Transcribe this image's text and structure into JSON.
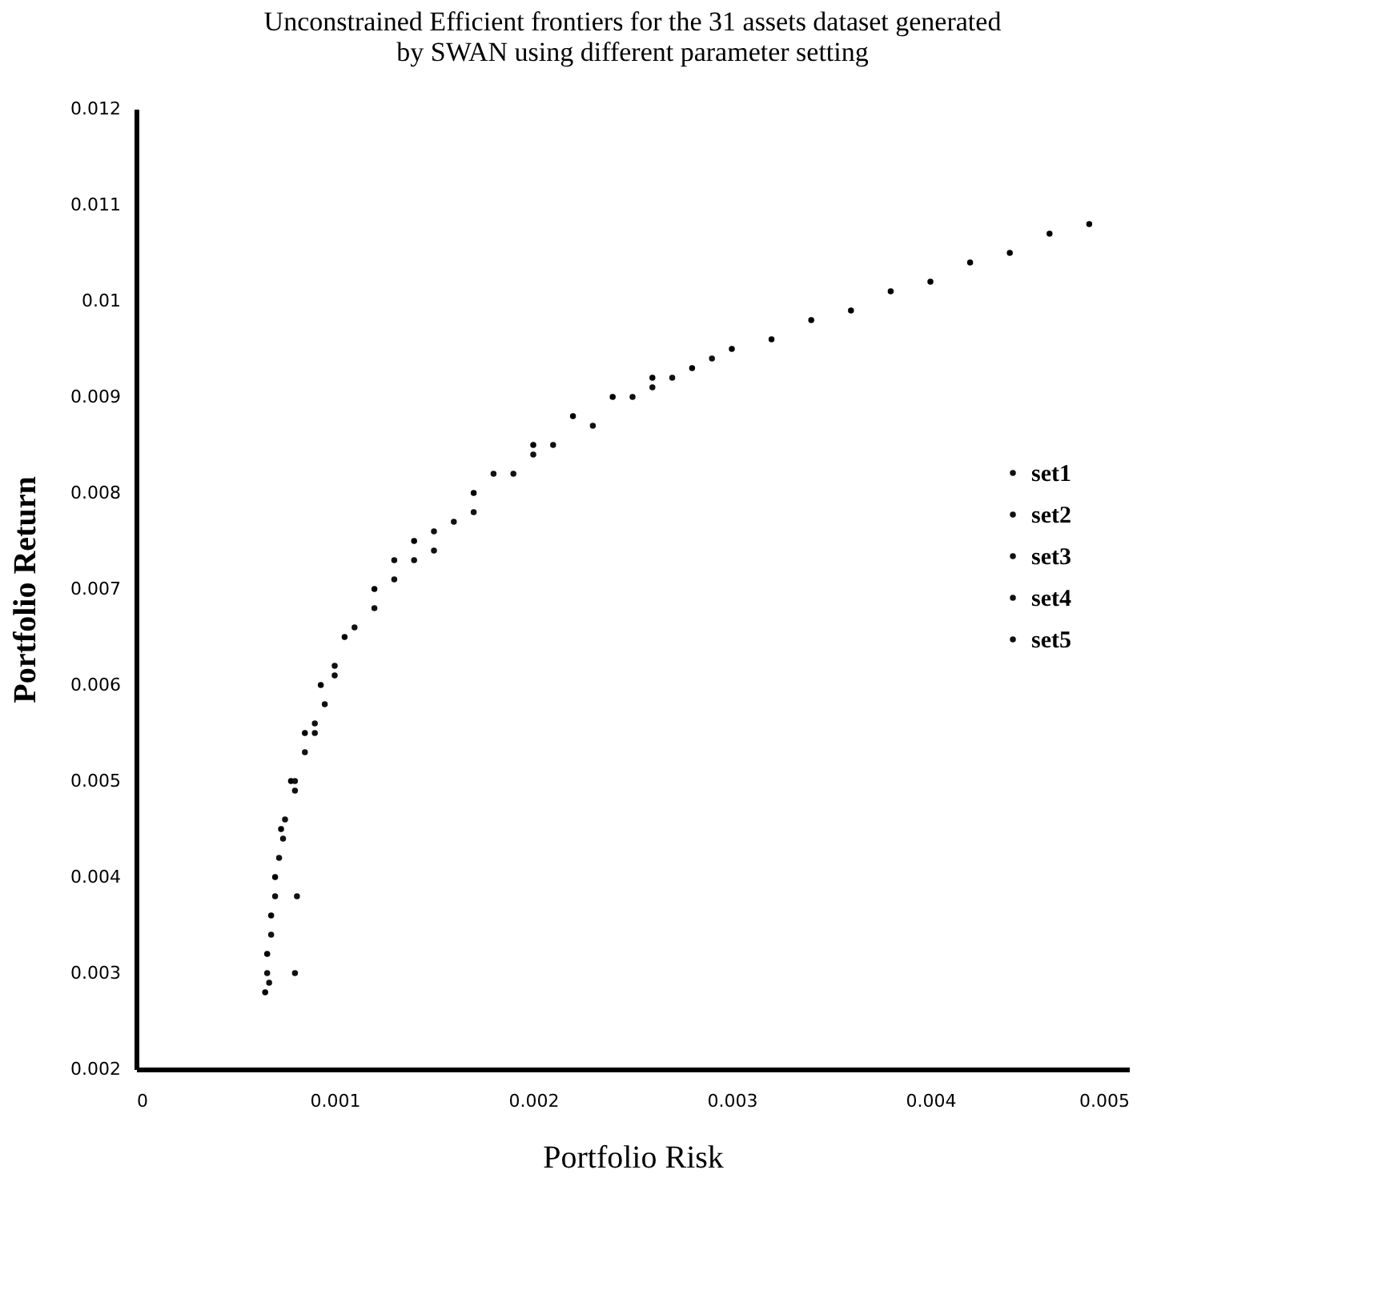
{
  "chart_data": {
    "type": "scatter",
    "title": "Unconstrained Efficient frontiers for the 31 assets dataset generated by SWAN using different parameter setting",
    "xlabel": "Portfolio Risk",
    "ylabel": "Portfolio Return",
    "xlim": [
      0,
      0.005
    ],
    "ylim": [
      0.002,
      0.012
    ],
    "xticks": [
      0,
      0.001,
      0.002,
      0.003,
      0.004,
      0.005
    ],
    "yticks": [
      0.002,
      0.003,
      0.004,
      0.005,
      0.006,
      0.007,
      0.008,
      0.009,
      0.01,
      0.011,
      0.012
    ],
    "grid": false,
    "legend": "right",
    "marker": "circle",
    "series": [
      {
        "color": "#000000",
        "x": [
          0.00065,
          0.00066,
          0.00068,
          0.0007,
          0.00073,
          0.00078,
          0.00085,
          0.00093,
          0.00105,
          0.0012,
          0.0014,
          0.0017,
          0.002,
          0.0022,
          0.0024,
          0.0026,
          0.0028,
          0.003,
          0.0032,
          0.0034,
          0.0036,
          0.0038,
          0.004,
          0.0042,
          0.0044,
          0.0046,
          0.0048
        ],
        "values": [
          0.0028,
          0.0032,
          0.0036,
          0.004,
          0.0045,
          0.005,
          0.0055,
          0.006,
          0.0065,
          0.007,
          0.0075,
          0.008,
          0.0085,
          0.0088,
          0.009,
          0.0092,
          0.0093,
          0.0095,
          0.0096,
          0.0098,
          0.0099,
          0.0101,
          0.0102,
          0.0104,
          0.0105,
          0.0107,
          0.0108
        ]
      },
      {
        "name": "set1",
        "color": "#111111",
        "x": [
          0.00066,
          0.0007,
          0.0008,
          0.001,
          0.0013,
          0.0018,
          0.0025
        ],
        "values": [
          0.003,
          0.0038,
          0.0049,
          0.0062,
          0.0073,
          0.0082,
          0.009
        ]
      },
      {
        "name": "set2",
        "color": "#111111",
        "x": [
          0.00067,
          0.00072,
          0.0009,
          0.0011,
          0.0015,
          0.0019,
          0.0027
        ],
        "values": [
          0.0029,
          0.0042,
          0.0056,
          0.0066,
          0.0076,
          0.0082,
          0.0092
        ]
      },
      {
        "name": "set3",
        "color": "#111111",
        "x": [
          0.0008,
          0.00075,
          0.00095,
          0.0012,
          0.0016,
          0.0021,
          0.0023
        ],
        "values": [
          0.003,
          0.0046,
          0.0058,
          0.0068,
          0.0077,
          0.0085,
          0.0087
        ]
      },
      {
        "name": "set4",
        "color": "#111111",
        "x": [
          0.00081,
          0.00074,
          0.00085,
          0.001,
          0.0017,
          0.0014,
          0.0026
        ],
        "values": [
          0.0038,
          0.0044,
          0.0053,
          0.0061,
          0.0078,
          0.0073,
          0.0091
        ]
      },
      {
        "name": "set5",
        "color": "#111111",
        "x": [
          0.00068,
          0.0008,
          0.0009,
          0.0013,
          0.0015,
          0.002,
          0.0029
        ],
        "values": [
          0.0034,
          0.005,
          0.0055,
          0.0071,
          0.0074,
          0.0084,
          0.0094
        ]
      }
    ]
  }
}
